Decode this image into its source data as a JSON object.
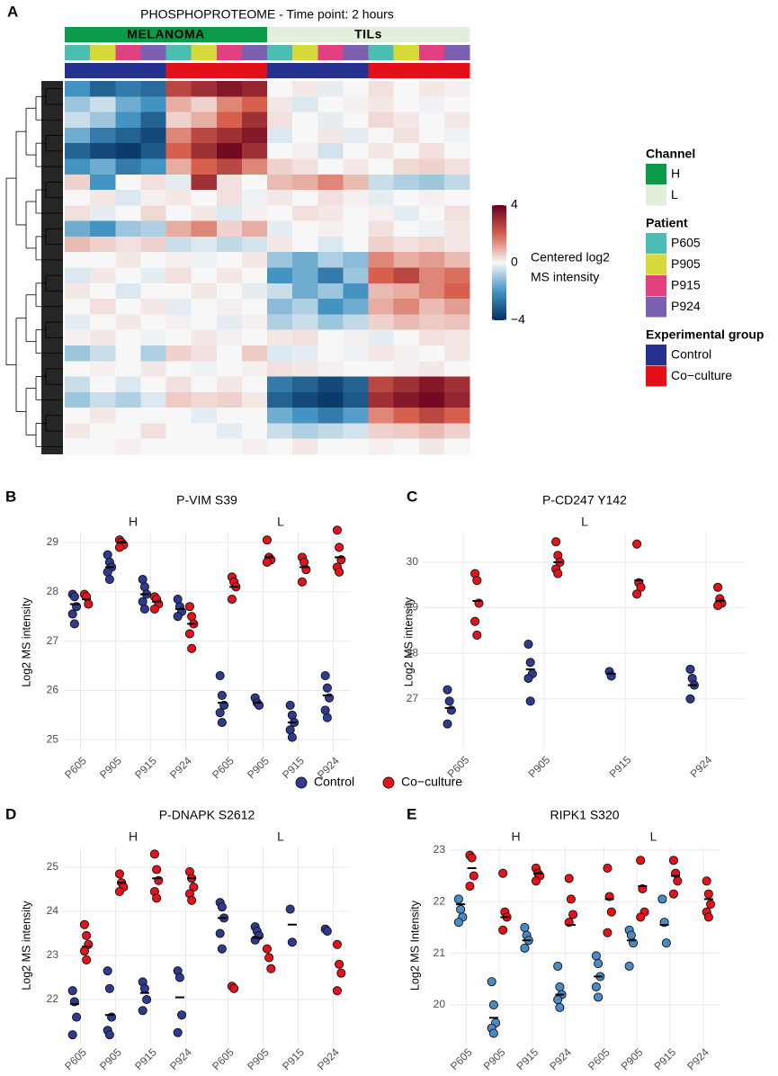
{
  "panel_labels": [
    "A",
    "B",
    "C",
    "D",
    "E"
  ],
  "chart_data": [
    {
      "type": "heatmap",
      "title": "PHOSPHOPROTEOME - Time point: 2 hours",
      "channel_labels": [
        "MELANOMA",
        "TILs"
      ],
      "columns": {
        "channel": [
          "H",
          "H",
          "H",
          "H",
          "H",
          "H",
          "H",
          "H",
          "L",
          "L",
          "L",
          "L",
          "L",
          "L",
          "L",
          "L"
        ],
        "patient": [
          "P605",
          "P905",
          "P915",
          "P924",
          "P605",
          "P905",
          "P915",
          "P924",
          "P605",
          "P905",
          "P915",
          "P924",
          "P605",
          "P905",
          "P915",
          "P924"
        ],
        "group": [
          "Control",
          "Control",
          "Control",
          "Control",
          "Co−culture",
          "Co−culture",
          "Co−culture",
          "Co−culture",
          "Control",
          "Control",
          "Control",
          "Control",
          "Co−culture",
          "Co−culture",
          "Co−culture",
          "Co−culture"
        ]
      },
      "values": [
        [
          -2,
          -3,
          -2.5,
          -2.8,
          2.5,
          3,
          3.5,
          3.2,
          0,
          0.2,
          -0.2,
          0,
          0.3,
          0,
          0.2,
          0.1
        ],
        [
          -1,
          -0.5,
          -1.5,
          -2,
          1,
          0.5,
          1.5,
          2,
          0.2,
          -0.3,
          0,
          0.1,
          0.2,
          0,
          -0.1,
          0
        ],
        [
          -0.5,
          -1,
          -2,
          -3,
          0.5,
          1,
          2,
          3,
          0.3,
          0,
          -0.2,
          0,
          0.4,
          0.2,
          0,
          0.2
        ],
        [
          -1.5,
          -2.5,
          -3,
          -3.5,
          1.5,
          2.5,
          3,
          3.5,
          -0.3,
          0,
          0.2,
          -0.2,
          0,
          0.3,
          0,
          -0.1
        ],
        [
          -3,
          -3.5,
          -3.8,
          -3.2,
          2,
          3,
          3.8,
          3,
          0,
          0.1,
          -0.4,
          0,
          0.2,
          0,
          0.3,
          0
        ],
        [
          -2,
          -1.5,
          -2.5,
          -2,
          1,
          2,
          2.5,
          1.5,
          0.5,
          0.3,
          0,
          0.2,
          0,
          0.4,
          0.5,
          0.3
        ],
        [
          0.5,
          -2,
          0,
          0.3,
          -0.2,
          3,
          0.3,
          0,
          0.8,
          1,
          1.5,
          0.8,
          -0.5,
          -0.8,
          -1,
          -0.6
        ],
        [
          0,
          0.2,
          -0.3,
          0.1,
          0.2,
          0,
          0.3,
          -0.1,
          0.2,
          0,
          0.3,
          0.1,
          -0.2,
          0,
          0.1,
          0
        ],
        [
          0.3,
          -0.2,
          0,
          0.4,
          0,
          0.2,
          -0.3,
          0.1,
          0,
          0.3,
          0.2,
          0,
          0.1,
          -0.2,
          0,
          0.3
        ],
        [
          -1.5,
          -2,
          -1,
          -0.8,
          1,
          1.5,
          0.5,
          1,
          -0.2,
          0,
          0.1,
          0,
          0.3,
          0,
          -0.1,
          0.2
        ],
        [
          0.8,
          0.5,
          0.3,
          0.5,
          -0.5,
          -0.3,
          -0.6,
          -0.4,
          0.2,
          0,
          -0.3,
          0,
          0.5,
          0.3,
          0.4,
          0.2
        ],
        [
          0,
          0,
          0.2,
          0,
          0.1,
          -0.1,
          0,
          0.2,
          -1,
          -1.5,
          -0.8,
          -1.2,
          1.5,
          1,
          1.2,
          0.8
        ],
        [
          -0.3,
          0.2,
          0,
          -0.2,
          0.3,
          0,
          0.2,
          0,
          -2,
          -1.5,
          -2.5,
          -1,
          2,
          2.5,
          1.5,
          1.8
        ],
        [
          0.2,
          0,
          -0.3,
          0,
          0,
          0.2,
          0,
          -0.2,
          -0.5,
          -1.5,
          -1,
          -2,
          0.8,
          1,
          1.5,
          2
        ],
        [
          0,
          0.3,
          0,
          0.2,
          -0.2,
          0,
          0.1,
          0,
          -1.2,
          -0.8,
          -2,
          -1.5,
          1,
          1.5,
          0.8,
          1.2
        ],
        [
          -0.2,
          0,
          0.2,
          0,
          0.1,
          0,
          -0.2,
          0.1,
          -0.8,
          -0.5,
          -1,
          -0.6,
          0.5,
          0.8,
          0.6,
          0.7
        ],
        [
          0.1,
          0.2,
          0,
          -0.1,
          0,
          0.2,
          0.1,
          0,
          0.2,
          0.3,
          0,
          0.1,
          -0.2,
          0,
          0.3,
          0.2
        ],
        [
          -1,
          -0.5,
          0,
          -0.8,
          0.5,
          0.3,
          0,
          0.6,
          -0.3,
          -0.2,
          0,
          -0.1,
          0.2,
          0.1,
          0,
          0.2
        ],
        [
          0,
          0.1,
          0,
          0.2,
          0,
          -0.1,
          0,
          0.1,
          0.3,
          0.2,
          0.1,
          0,
          0,
          0.1,
          0.2,
          0
        ],
        [
          -0.5,
          0,
          -0.3,
          0,
          0.3,
          0,
          0.2,
          0,
          -2.5,
          -3,
          -3.5,
          -3,
          2.5,
          3,
          3.5,
          3
        ],
        [
          -1,
          -0.5,
          -0.8,
          -0.3,
          0.6,
          0.4,
          0.5,
          0.2,
          -3,
          -3.5,
          -3.8,
          -3.2,
          3,
          3.5,
          3.8,
          3.2
        ],
        [
          0,
          0.2,
          0,
          0,
          0,
          -0.2,
          0,
          0,
          -1.5,
          -2,
          -2.5,
          -1.8,
          1.5,
          2,
          2.5,
          2
        ],
        [
          0.2,
          0,
          0,
          0.3,
          0,
          0,
          -0.2,
          0,
          -0.5,
          -0.8,
          -0.6,
          -0.4,
          0.5,
          0.6,
          0.8,
          0.5
        ],
        [
          0,
          0,
          0.1,
          0,
          0,
          0,
          0,
          0.1,
          0,
          0.2,
          0,
          0,
          0.1,
          0,
          0.2,
          0
        ]
      ],
      "colorscale": [
        {
          "value": -4,
          "color": "#053061"
        },
        {
          "value": -2,
          "color": "#4393c3"
        },
        {
          "value": 0,
          "color": "#f7f7f7"
        },
        {
          "value": 2,
          "color": "#d6604d"
        },
        {
          "value": 4,
          "color": "#67001f"
        }
      ],
      "colorbar": {
        "label": [
          "Centered log2",
          "MS intensity"
        ],
        "lim": [
          -4,
          4
        ],
        "ticks": [
          {
            "value": -4,
            "label": "−4"
          },
          0,
          4
        ]
      },
      "legends": [
        {
          "title": "Channel",
          "items": [
            {
              "name": "H",
              "color": "#0a9a48"
            },
            {
              "name": "L",
              "color": "#e1efdb"
            }
          ]
        },
        {
          "title": "Patient",
          "items": [
            {
              "name": "P605",
              "color": "#4cbdb2"
            },
            {
              "name": "P905",
              "color": "#d6d93a"
            },
            {
              "name": "P915",
              "color": "#e2417f"
            },
            {
              "name": "P924",
              "color": "#7b5fb1"
            }
          ]
        },
        {
          "title": "Experimental group",
          "items": [
            {
              "name": "Control",
              "color": "#24318f"
            },
            {
              "name": "Co−culture",
              "color": "#e3101a"
            }
          ]
        }
      ]
    },
    {
      "type": "strip",
      "title": "P-VIM S39",
      "ylabel": "Log2 MS intensity",
      "ylim": [
        24.75,
        29.2
      ],
      "yticks": [
        25,
        26,
        27,
        28,
        29
      ],
      "control_color": "#2e3b8f",
      "coculture_color": "#e3121b",
      "facets": [
        {
          "name": "H",
          "categories": [
            "P605",
            "P905",
            "P915",
            "P924"
          ],
          "control": [
            [
              27.95,
              27.9,
              27.7,
              27.55,
              27.35
            ],
            [
              28.75,
              28.6,
              28.5,
              28.4,
              28.25
            ],
            [
              28.25,
              28.1,
              27.95,
              27.8,
              27.65
            ],
            [
              27.85,
              27.7,
              27.6,
              27.5
            ]
          ],
          "coculture": [
            [
              27.95,
              27.9,
              27.75
            ],
            [
              29.05,
              29.0,
              28.95,
              28.9
            ],
            [
              27.9,
              27.85,
              27.75,
              27.65
            ],
            [
              27.7,
              27.5,
              27.35,
              27.15,
              26.85
            ]
          ],
          "control_mean": [
            27.75,
            28.5,
            27.95,
            27.65
          ],
          "coculture_mean": [
            27.85,
            29.0,
            27.8,
            27.35
          ]
        },
        {
          "name": "L",
          "categories": [
            "P605",
            "P905",
            "P915",
            "P924"
          ],
          "control": [
            [
              26.3,
              25.9,
              25.7,
              25.55,
              25.35
            ],
            [
              25.85,
              25.75,
              25.7
            ],
            [
              25.7,
              25.5,
              25.35,
              25.2,
              25.05
            ],
            [
              26.3,
              26.05,
              25.85,
              25.6,
              25.45
            ]
          ],
          "coculture": [
            [
              28.3,
              28.2,
              28.1,
              27.85
            ],
            [
              29.05,
              28.7,
              28.65,
              28.6
            ],
            [
              28.7,
              28.6,
              28.45,
              28.2
            ],
            [
              29.25,
              28.9,
              28.65,
              28.5,
              28.4
            ]
          ],
          "control_mean": [
            25.75,
            25.75,
            25.35,
            25.9
          ],
          "coculture_mean": [
            28.1,
            28.7,
            28.5,
            28.7
          ]
        }
      ]
    },
    {
      "type": "strip",
      "title": "P-CD247 Y142",
      "ylabel": "Log2 MS intensity",
      "ylim": [
        25.85,
        30.65
      ],
      "yticks": [
        27,
        28,
        29,
        30
      ],
      "control_color": "#2e3b8f",
      "coculture_color": "#e3121b",
      "facets": [
        {
          "name": "L",
          "categories": [
            "P605",
            "P905",
            "P915",
            "P924"
          ],
          "control": [
            [
              27.2,
              26.95,
              26.75,
              26.45
            ],
            [
              28.2,
              27.8,
              27.55,
              27.45,
              26.95
            ],
            [
              27.6,
              27.5
            ],
            [
              27.65,
              27.45,
              27.3,
              27.0
            ]
          ],
          "coculture": [
            [
              29.75,
              29.6,
              29.1,
              28.7,
              28.4
            ],
            [
              30.45,
              30.15,
              30.0,
              29.85,
              29.75
            ],
            [
              30.4,
              29.55,
              29.45,
              29.3
            ],
            [
              29.45,
              29.2,
              29.1,
              29.05
            ]
          ],
          "control_mean": [
            26.8,
            27.65,
            27.55,
            27.3
          ],
          "coculture_mean": [
            29.15,
            30.0,
            29.6,
            29.15
          ]
        }
      ]
    },
    {
      "type": "strip",
      "title": "P-DNAPK S2612",
      "ylabel": "Log2 MS intensity",
      "ylim": [
        21.0,
        25.45
      ],
      "yticks": [
        22,
        23,
        24,
        25
      ],
      "control_color": "#2e3b8f",
      "coculture_color": "#e3121b",
      "facets": [
        {
          "name": "H",
          "categories": [
            "P605",
            "P905",
            "P915",
            "P924"
          ],
          "control": [
            [
              22.2,
              21.95,
              21.6,
              21.2
            ],
            [
              22.65,
              22.25,
              21.6,
              21.3,
              21.2
            ],
            [
              22.4,
              22.25,
              22.0,
              21.75
            ],
            [
              22.65,
              22.5,
              21.65,
              21.25
            ]
          ],
          "coculture": [
            [
              23.7,
              23.45,
              23.25,
              23.1,
              22.9
            ],
            [
              24.85,
              24.65,
              24.55,
              24.45
            ],
            [
              25.3,
              24.95,
              24.7,
              24.45,
              24.3
            ],
            [
              24.9,
              24.75,
              24.55,
              24.4,
              24.25
            ]
          ],
          "control_mean": [
            21.9,
            21.65,
            22.15,
            22.05
          ],
          "coculture_mean": [
            23.2,
            24.65,
            24.75,
            24.75
          ]
        },
        {
          "name": "L",
          "categories": [
            "P605",
            "P905",
            "P915",
            "P924"
          ],
          "control": [
            [
              24.2,
              24.1,
              23.85,
              23.5,
              23.15
            ],
            [
              23.65,
              23.55,
              23.45,
              23.35
            ],
            [
              24.05,
              23.3
            ],
            [
              23.6,
              23.55
            ]
          ],
          "coculture": [
            [
              22.3,
              22.25
            ],
            [
              23.15,
              22.95,
              22.7
            ],
            [],
            [
              23.25,
              22.8,
              22.6,
              22.2
            ]
          ],
          "control_mean": [
            23.85,
            23.4,
            23.7,
            null
          ],
          "coculture_mean": [
            null,
            null,
            null,
            null
          ]
        }
      ]
    },
    {
      "type": "strip",
      "title": "RIPK1 S320",
      "ylabel": "Log2 MS Intensity",
      "ylim": [
        19.25,
        23.05
      ],
      "yticks": [
        20,
        21,
        22,
        23
      ],
      "control_color": "#4a8ac6",
      "coculture_color": "#e3121b",
      "facets": [
        {
          "name": "H",
          "categories": [
            "P605",
            "P905",
            "P915",
            "P924"
          ],
          "control": [
            [
              22.05,
              21.85,
              21.7,
              21.6
            ],
            [
              20.45,
              20.0,
              19.65,
              19.55,
              19.45
            ],
            [
              21.5,
              21.35,
              21.25,
              21.1
            ],
            [
              20.75,
              20.35,
              20.2,
              20.1,
              19.95
            ]
          ],
          "coculture": [
            [
              22.9,
              22.85,
              22.5,
              22.3
            ],
            [
              22.55,
              21.8,
              21.7,
              21.45
            ],
            [
              22.65,
              22.55,
              22.5,
              22.4
            ],
            [
              22.45,
              22.05,
              21.75,
              21.6
            ]
          ],
          "control_mean": [
            21.95,
            19.75,
            21.25,
            20.2
          ],
          "coculture_mean": [
            22.65,
            21.7,
            22.55,
            21.55
          ]
        },
        {
          "name": "L",
          "categories": [
            "P605",
            "P905",
            "P915",
            "P924"
          ],
          "control": [
            [
              20.95,
              20.8,
              20.55,
              20.35,
              20.15
            ],
            [
              21.45,
              21.35,
              21.2,
              20.75
            ],
            [
              22.05,
              21.6,
              21.2
            ],
            []
          ],
          "coculture": [
            [
              22.65,
              22.1,
              21.8,
              21.4
            ],
            [
              22.8,
              22.25,
              21.8,
              21.7
            ],
            [
              22.8,
              22.55,
              22.4,
              22.15
            ],
            [
              22.4,
              22.15,
              21.95,
              21.8,
              21.7
            ]
          ],
          "control_mean": [
            20.55,
            21.25,
            21.55,
            null
          ],
          "coculture_mean": [
            22.05,
            22.3,
            22.5,
            22.05
          ]
        }
      ]
    }
  ],
  "legend": [
    {
      "name": "Control",
      "color": "#2e3b8f"
    },
    {
      "name": "Co−culture",
      "color": "#e3121b"
    }
  ]
}
